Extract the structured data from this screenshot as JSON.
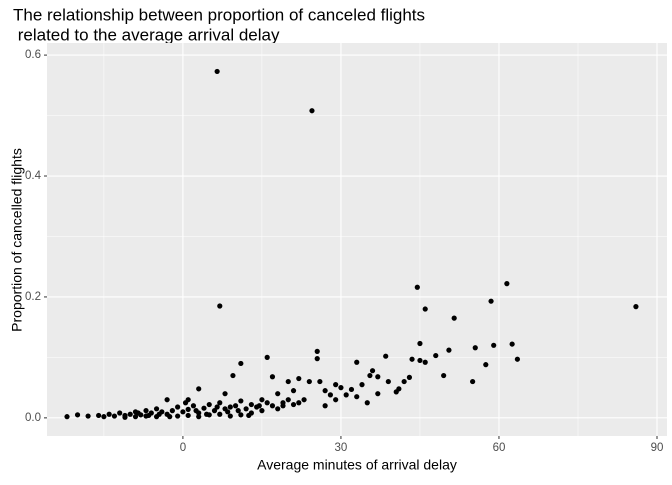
{
  "chart_data": {
    "type": "scatter",
    "title": [
      "The relationship between proportion of canceled flights",
      " related to the average arrival delay"
    ],
    "x_label": "Average minutes of arrival delay",
    "y_label": "Proportion of cancelled flights",
    "xlim": [
      -25.8,
      91.9
    ],
    "xticks": [
      0,
      30,
      60,
      90
    ],
    "ylim": [
      -0.03,
      0.62
    ],
    "yticks": [
      {
        "value": 0,
        "label": "0.0"
      },
      0.2,
      0.4,
      0.6
    ],
    "grid": true,
    "color": "#000000",
    "x": [
      6.5,
      24.5,
      7,
      44.5,
      46,
      51.5,
      58.5,
      61.5,
      62.5,
      63.5,
      86,
      59,
      55.5,
      55,
      57.5,
      50.5,
      48,
      49.5,
      45,
      45,
      46,
      43.5,
      43,
      41,
      40.5,
      38.5,
      37,
      36,
      35.5,
      34,
      33,
      32,
      31,
      30,
      29,
      28,
      27,
      26,
      25.5,
      25.5,
      24,
      23,
      22,
      21,
      20,
      19,
      18,
      17,
      16,
      15,
      11,
      9.5,
      8,
      3,
      1,
      -22,
      -20,
      -18,
      -16,
      -15,
      -14,
      -13,
      -12,
      -11,
      -10,
      -9,
      -8,
      -7,
      -6,
      -5,
      -4,
      -3,
      -2,
      -1,
      0,
      1,
      2,
      3,
      4,
      5,
      6,
      7,
      8,
      9,
      10,
      11,
      12,
      13,
      14,
      15,
      16,
      17,
      18,
      19,
      20,
      21,
      22,
      -3,
      -1,
      1,
      3,
      5,
      7,
      9,
      11,
      13,
      -5,
      -7,
      -9,
      -11,
      0.5,
      2.5,
      4.5,
      6.5,
      8.5,
      10.5,
      12.5,
      14.5,
      -2.5,
      -4.5,
      -6.5,
      -8.5,
      27,
      29,
      33,
      35,
      37,
      39,
      42
    ],
    "values": [
      0.573,
      0.508,
      0.185,
      0.216,
      0.18,
      0.165,
      0.193,
      0.222,
      0.122,
      0.097,
      0.184,
      0.12,
      0.116,
      0.06,
      0.088,
      0.112,
      0.103,
      0.07,
      0.123,
      0.095,
      0.092,
      0.097,
      0.067,
      0.048,
      0.043,
      0.102,
      0.068,
      0.078,
      0.07,
      0.055,
      0.092,
      0.047,
      0.038,
      0.05,
      0.055,
      0.038,
      0.045,
      0.06,
      0.11,
      0.098,
      0.06,
      0.03,
      0.065,
      0.045,
      0.06,
      0.025,
      0.04,
      0.068,
      0.1,
      0.03,
      0.09,
      0.07,
      0.04,
      0.048,
      0.03,
      0.002,
      0.005,
      0.003,
      0.004,
      0.002,
      0.006,
      0.003,
      0.008,
      0.004,
      0.006,
      0.01,
      0.005,
      0.012,
      0.008,
      0.015,
      0.01,
      0.006,
      0.012,
      0.018,
      0.01,
      0.014,
      0.02,
      0.008,
      0.016,
      0.022,
      0.012,
      0.025,
      0.015,
      0.018,
      0.02,
      0.028,
      0.015,
      0.022,
      0.018,
      0.012,
      0.025,
      0.02,
      0.015,
      0.02,
      0.03,
      0.022,
      0.025,
      0.03,
      0.003,
      0.004,
      0.002,
      0.005,
      0.006,
      0.003,
      0.005,
      0.008,
      0.002,
      0.003,
      0.002,
      0.001,
      0.025,
      0.012,
      0.006,
      0.018,
      0.01,
      0.012,
      0.004,
      0.02,
      0.002,
      0.006,
      0.004,
      0.008,
      0.02,
      0.03,
      0.035,
      0.025,
      0.04,
      0.06,
      0.06
    ]
  }
}
